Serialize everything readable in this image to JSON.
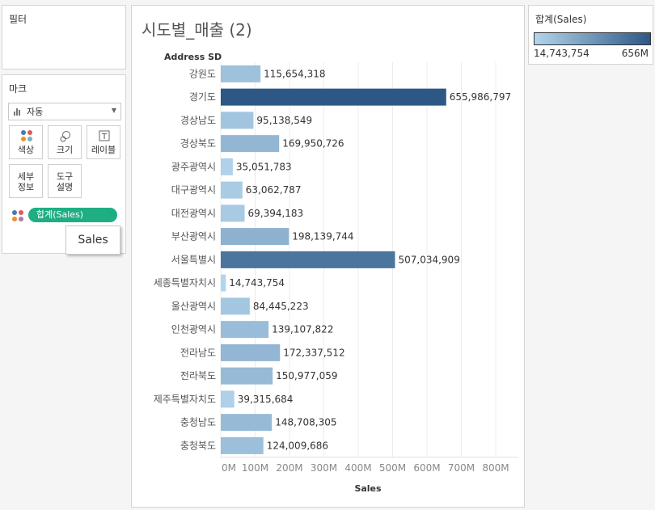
{
  "filters_panel": {
    "title": "필터"
  },
  "marks_panel": {
    "title": "마크",
    "mark_type": "자동",
    "cards": {
      "color": "색상",
      "size": "크기",
      "label": "레이블",
      "detail": "세부\n정보",
      "tooltip": "도구\n설명"
    },
    "pill": "합계(Sales)",
    "pill_color": "#1fae84"
  },
  "tooltip": {
    "text": "Sales"
  },
  "legend": {
    "title": "합계(Sales)",
    "min_label": "14,743,754",
    "max_label": "656M",
    "color_low": "#b3d5ec",
    "color_high": "#2d5886"
  },
  "chart_data": {
    "type": "bar",
    "orientation": "horizontal",
    "title": "시도별_매출 (2)",
    "row_header": "Address SD",
    "xlabel": "Sales",
    "xlim": [
      0,
      820000000
    ],
    "x_ticks": [
      0,
      100000000,
      200000000,
      300000000,
      400000000,
      500000000,
      600000000,
      700000000,
      800000000
    ],
    "x_tick_labels": [
      "0M",
      "100M",
      "200M",
      "300M",
      "400M",
      "500M",
      "600M",
      "700M",
      "800M"
    ],
    "grid": "vertical",
    "categories": [
      "강원도",
      "경기도",
      "경상남도",
      "경상북도",
      "광주광역시",
      "대구광역시",
      "대전광역시",
      "부산광역시",
      "서울특별시",
      "세종특별자치시",
      "울산광역시",
      "인천광역시",
      "전라남도",
      "전라북도",
      "제주특별자치도",
      "충청남도",
      "충청북도"
    ],
    "values": [
      115654318,
      655986797,
      95138549,
      169950726,
      35051783,
      63062787,
      69394183,
      198139744,
      507034909,
      14743754,
      84445223,
      139107822,
      172337512,
      150977059,
      39315684,
      148708305,
      124009686
    ],
    "value_labels": [
      "115,654,318",
      "655,986,797",
      "95,138,549",
      "169,950,726",
      "35,051,783",
      "63,062,787",
      "69,394,183",
      "198,139,744",
      "507,034,909",
      "14,743,754",
      "84,445,223",
      "139,107,822",
      "172,337,512",
      "150,977,059",
      "39,315,684",
      "148,708,305",
      "124,009,686"
    ]
  }
}
